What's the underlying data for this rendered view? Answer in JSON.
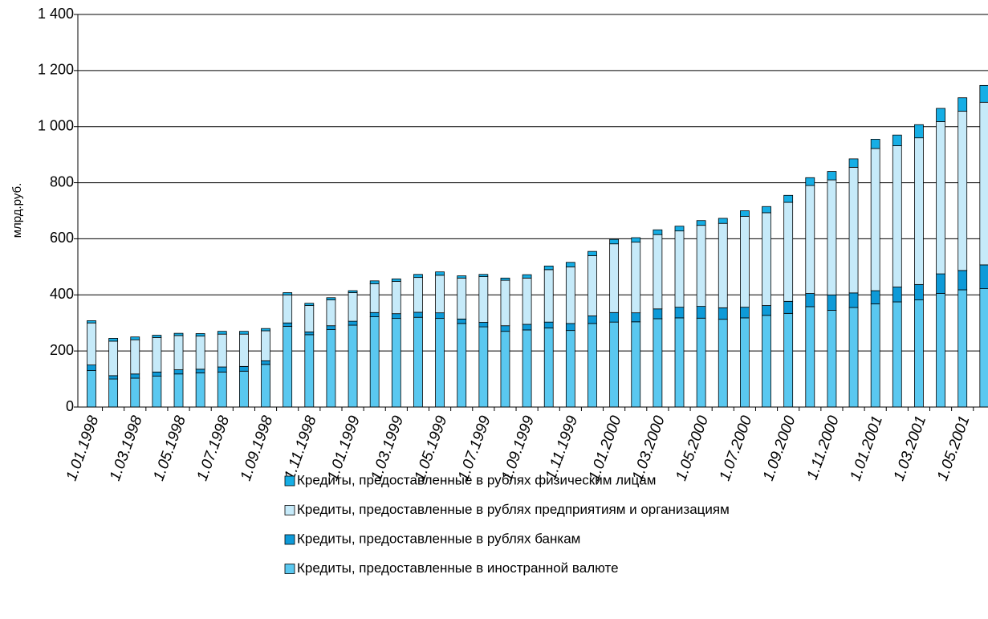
{
  "chart_data": {
    "type": "stacked_bar",
    "ylabel": "млрд.руб.",
    "categories": [
      "1.01.1998",
      null,
      "1.03.1998",
      null,
      "1.05.1998",
      null,
      "1.07.1998",
      null,
      "1.09.1998",
      null,
      "1.11.1998",
      null,
      "1.01.1999",
      null,
      "1.03.1999",
      null,
      "1.05.1999",
      null,
      "1.07.1999",
      null,
      "1.09.1999",
      null,
      "1.11.1999",
      null,
      "1.01.2000",
      null,
      "1.03.2000",
      null,
      "1.05.2000",
      null,
      "1.07.2000",
      null,
      "1.09.2000",
      null,
      "1.11.2000",
      null,
      "1.01.2001",
      null,
      "1.03.2001",
      null,
      "1.05.2001",
      null
    ],
    "series": [
      {
        "name": "Кредиты, предоставленные в иностранной валюте",
        "color": "#5ac8f0",
        "values": [
          130,
          100,
          103,
          110,
          118,
          122,
          125,
          128,
          152,
          288,
          258,
          276,
          292,
          322,
          316,
          320,
          316,
          298,
          286,
          270,
          275,
          282,
          273,
          298,
          303,
          304,
          315,
          318,
          317,
          313,
          318,
          327,
          334,
          358,
          345,
          355,
          368,
          375,
          382,
          405,
          418,
          422
        ]
      },
      {
        "name": "Кредиты, предоставленные в рублях  банкам",
        "color": "#0e9ad8",
        "values": [
          20,
          12,
          15,
          15,
          15,
          13,
          18,
          17,
          13,
          12,
          10,
          14,
          14,
          15,
          17,
          18,
          20,
          16,
          16,
          20,
          20,
          21,
          25,
          27,
          34,
          32,
          35,
          38,
          42,
          41,
          38,
          35,
          43,
          47,
          55,
          52,
          47,
          53,
          55,
          70,
          69,
          85
        ]
      },
      {
        "name": "Кредиты, предоставленные в рублях предприятиям и организациям",
        "color": "#c6eaf9",
        "values": [
          150,
          123,
          122,
          123,
          122,
          118,
          117,
          115,
          107,
          100,
          94,
          92,
          102,
          103,
          115,
          124,
          134,
          146,
          163,
          162,
          165,
          187,
          202,
          215,
          245,
          252,
          265,
          272,
          289,
          301,
          324,
          331,
          353,
          385,
          410,
          448,
          507,
          504,
          523,
          543,
          568,
          580
        ]
      },
      {
        "name": "Кредиты, предоставленные в рублях физическим лицам",
        "color": "#16aee5",
        "values": [
          8,
          10,
          10,
          8,
          8,
          9,
          10,
          10,
          8,
          8,
          8,
          8,
          7,
          10,
          9,
          11,
          12,
          8,
          8,
          8,
          12,
          13,
          16,
          15,
          16,
          16,
          17,
          17,
          17,
          18,
          20,
          22,
          25,
          28,
          30,
          30,
          33,
          38,
          47,
          47,
          48,
          60
        ]
      }
    ],
    "ylim": [
      0,
      1400
    ],
    "yticks": [
      0,
      200,
      400,
      600,
      800,
      {
        "value": 1000,
        "label": "1 000"
      },
      {
        "value": 1200,
        "label": "1 200"
      },
      {
        "value": 1400,
        "label": "1 400"
      }
    ],
    "grid": true
  }
}
